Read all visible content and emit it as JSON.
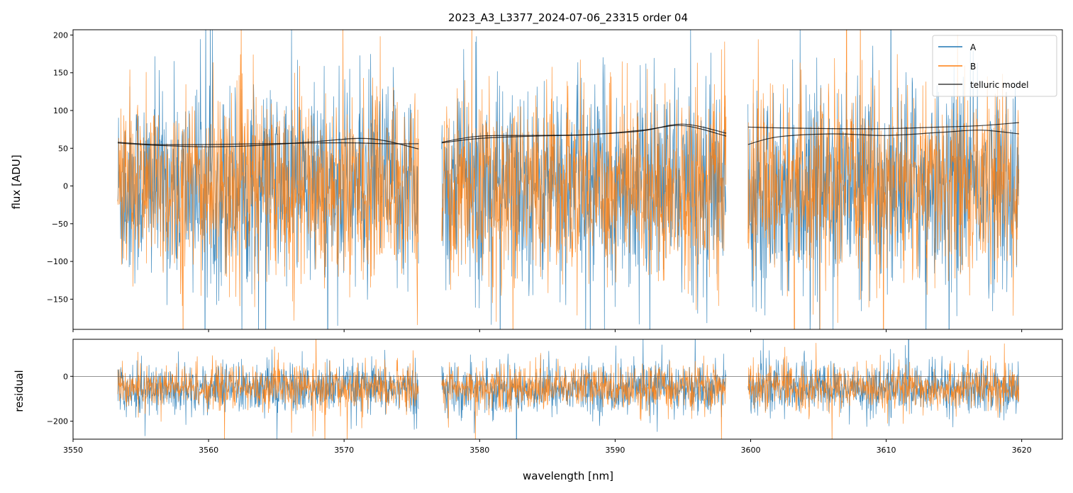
{
  "chart_data": [
    {
      "type": "line",
      "panel": "flux",
      "title": "2023_A3_L3377_2024-07-06_23315  order 04",
      "ylabel": "flux [ADU]",
      "xlim": [
        3550,
        3623
      ],
      "ylim": [
        -190,
        207
      ],
      "yticks": [
        -150,
        -100,
        -50,
        0,
        50,
        100,
        150,
        200
      ],
      "ytick_labels": [
        "−150",
        "−100",
        "−50",
        "0",
        "50",
        "100",
        "150",
        "200"
      ],
      "grid": false,
      "legend_position": "top-right",
      "segments": [
        [
          3553.3,
          3575.5
        ],
        [
          3577.2,
          3598.2
        ],
        [
          3599.8,
          3619.8
        ]
      ],
      "series": [
        {
          "name": "A",
          "color": "#1f77b4",
          "noise_mean": 0,
          "noise_sd": 65
        },
        {
          "name": "B",
          "color": "#ff7f0e",
          "noise_mean": 0,
          "noise_sd": 60
        },
        {
          "name": "telluric model",
          "color": "#000000",
          "lines": [
            {
              "x": [
                3553.3,
                3556,
                3560,
                3564,
                3568,
                3571,
                3573,
                3575.5
              ],
              "y": [
                58,
                55,
                55,
                56,
                57,
                57,
                56,
                56
              ]
            },
            {
              "x": [
                3553.3,
                3556,
                3560,
                3564,
                3568,
                3571,
                3573,
                3575.5
              ],
              "y": [
                57,
                54,
                52,
                54,
                59,
                63,
                60,
                49
              ]
            },
            {
              "x": [
                3577.2,
                3580,
                3584,
                3588,
                3592,
                3595,
                3598.2
              ],
              "y": [
                57,
                63,
                66,
                68,
                73,
                82,
                70
              ]
            },
            {
              "x": [
                3577.2,
                3580,
                3584,
                3588,
                3592,
                3595,
                3598.2
              ],
              "y": [
                58,
                66,
                67,
                68,
                74,
                80,
                66
              ]
            },
            {
              "x": [
                3599.8,
                3602,
                3606,
                3610,
                3614,
                3617,
                3619.8
              ],
              "y": [
                78,
                77,
                76,
                76,
                78,
                80,
                84
              ]
            },
            {
              "x": [
                3599.8,
                3602,
                3606,
                3610,
                3614,
                3617,
                3619.8
              ],
              "y": [
                55,
                65,
                69,
                67,
                71,
                74,
                69
              ]
            }
          ]
        }
      ]
    },
    {
      "type": "line",
      "panel": "residual",
      "xlabel": "wavelength [nm]",
      "ylabel": "residual",
      "xlim": [
        3550,
        3623
      ],
      "ylim": [
        -280,
        165
      ],
      "xticks": [
        3550,
        3560,
        3570,
        3580,
        3590,
        3600,
        3610,
        3620
      ],
      "xtick_labels": [
        "3550",
        "3560",
        "3570",
        "3580",
        "3590",
        "3600",
        "3610",
        "3620"
      ],
      "yticks": [
        -200,
        0
      ],
      "ytick_labels": [
        "−200",
        "0"
      ],
      "zero_line": 0,
      "grid": false,
      "segments": [
        [
          3553.3,
          3575.5
        ],
        [
          3577.2,
          3598.2
        ],
        [
          3599.8,
          3619.8
        ]
      ],
      "series": [
        {
          "name": "A",
          "color": "#1f77b4",
          "noise_mean": -55,
          "noise_sd": 55
        },
        {
          "name": "B",
          "color": "#ff7f0e",
          "noise_mean": -50,
          "noise_sd": 48
        }
      ]
    }
  ]
}
